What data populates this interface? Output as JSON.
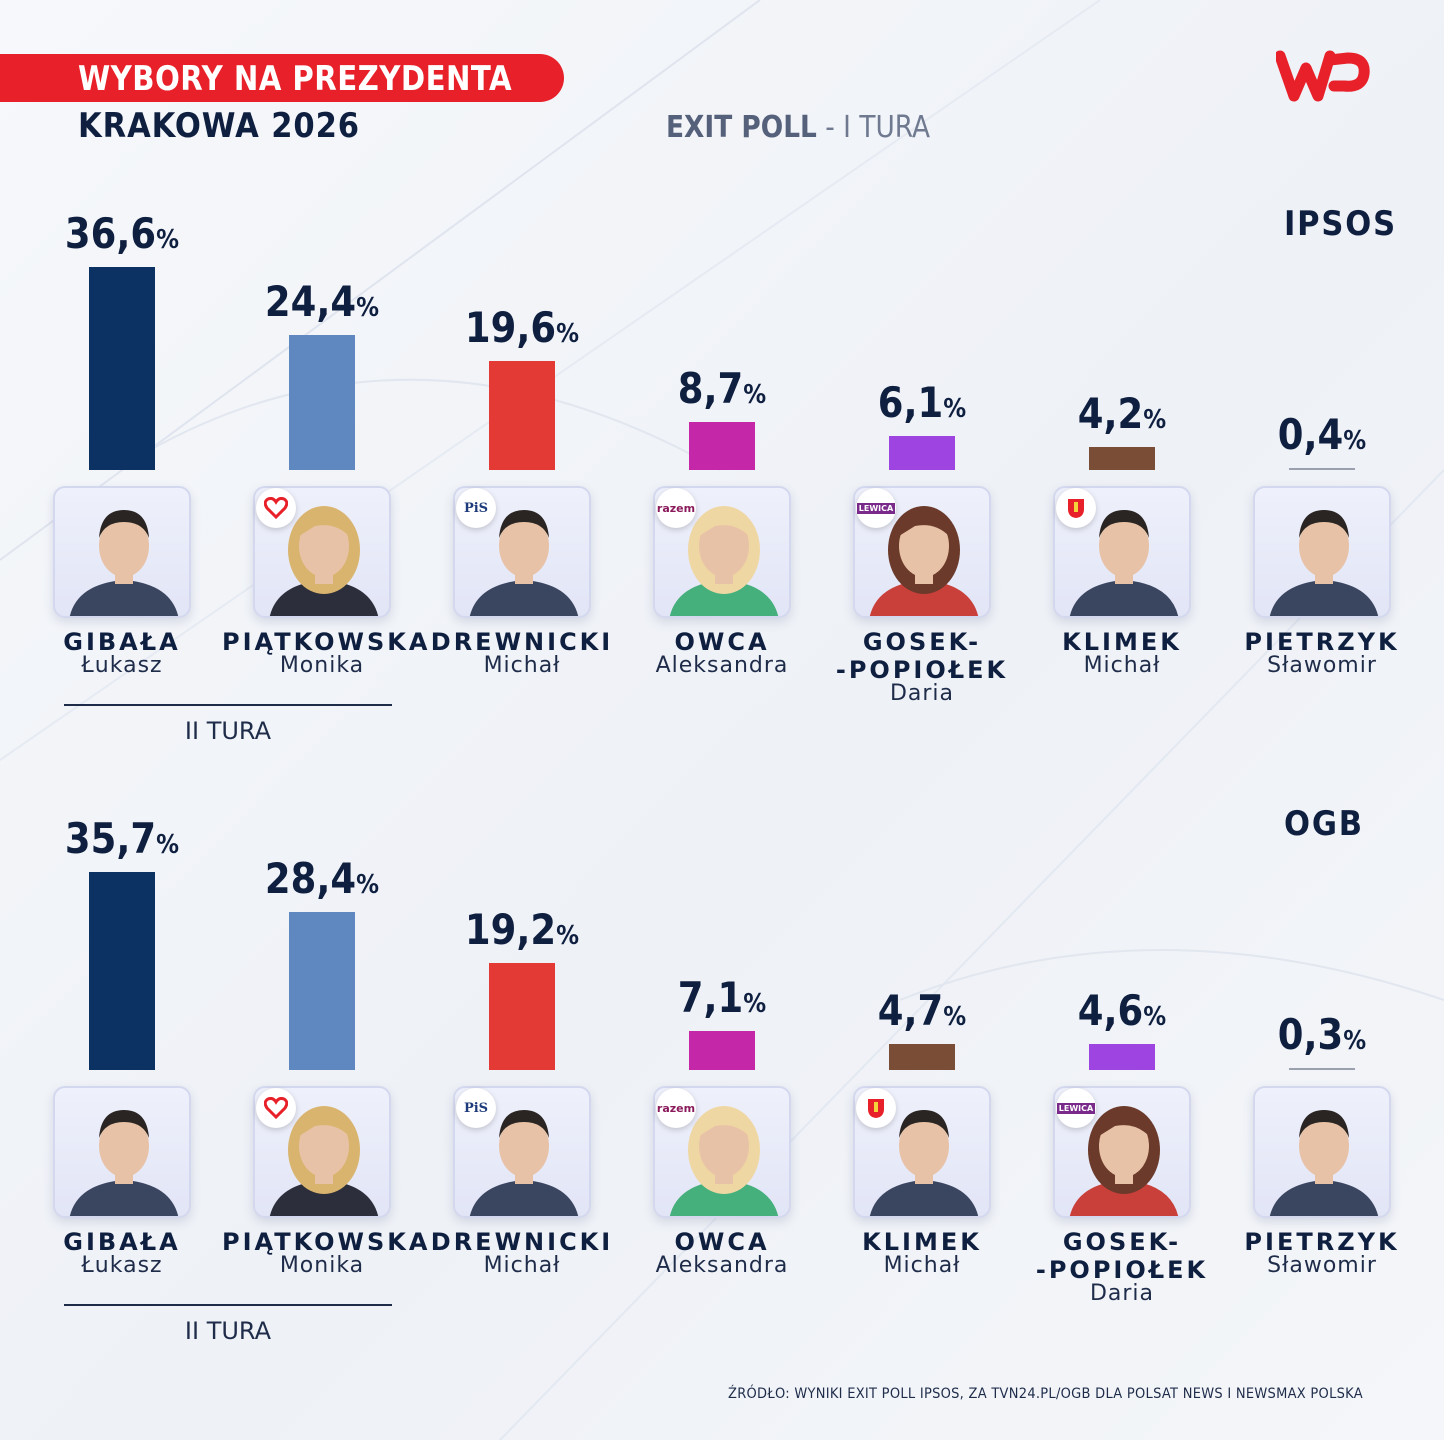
{
  "header": {
    "title_line1": "WYBORY NA PREZYDENTA",
    "title_line2": "KRAKOWA  2026",
    "subtitle_strong": "EXIT POLL",
    "subtitle_light": " - I TURA",
    "logo": "WP"
  },
  "chart_data": [
    {
      "type": "bar",
      "title": "IPSOS",
      "unit": "%",
      "categories": [
        "GIBAŁA Łukasz",
        "PIĄTKOWSKA Monika",
        "DREWNICKI Michał",
        "OWCA Aleksandra",
        "GOSEK-POPIOŁEK Daria",
        "KLIMEK Michał",
        "PIETRZYK Sławomir"
      ],
      "values": [
        36.6,
        24.4,
        19.6,
        8.7,
        6.1,
        4.2,
        0.4
      ],
      "candidates": [
        {
          "surname": "GIBAŁA",
          "firstname": "Łukasz",
          "value_label": "36,6",
          "value": 36.6,
          "color": "#0c3263",
          "badge": ""
        },
        {
          "surname": "PIĄTKOWSKA",
          "firstname": "Monika",
          "value_label": "24,4",
          "value": 24.4,
          "color": "#5e88bf",
          "badge": "heart"
        },
        {
          "surname": "DREWNICKI",
          "firstname": "Michał",
          "value_label": "19,6",
          "value": 19.6,
          "color": "#e43a36",
          "badge": "PiS"
        },
        {
          "surname": "OWCA",
          "firstname": "Aleksandra",
          "value_label": "8,7",
          "value": 8.7,
          "color": "#c428a9",
          "badge": "razem"
        },
        {
          "surname": "GOSEK-",
          "surname2": "-POPIOŁEK",
          "firstname": "Daria",
          "value_label": "6,1",
          "value": 6.1,
          "color": "#9e44e0",
          "badge": "LEWICA"
        },
        {
          "surname": "KLIMEK",
          "firstname": "Michał",
          "value_label": "4,2",
          "value": 4.2,
          "color": "#7a4d36",
          "badge": "crest"
        },
        {
          "surname": "PIETRZYK",
          "firstname": "Sławomir",
          "value_label": "0,4",
          "value": 0.4,
          "color": "#9aa0ae",
          "badge": ""
        }
      ],
      "runoff_label": "II TURA"
    },
    {
      "type": "bar",
      "title": "OGB",
      "unit": "%",
      "categories": [
        "GIBAŁA Łukasz",
        "PIĄTKOWSKA Monika",
        "DREWNICKI Michał",
        "OWCA Aleksandra",
        "KLIMEK Michał",
        "GOSEK-POPIOŁEK Daria",
        "PIETRZYK Sławomir"
      ],
      "values": [
        35.7,
        28.4,
        19.2,
        7.1,
        4.7,
        4.6,
        0.3
      ],
      "candidates": [
        {
          "surname": "GIBAŁA",
          "firstname": "Łukasz",
          "value_label": "35,7",
          "value": 35.7,
          "color": "#0c3263",
          "badge": ""
        },
        {
          "surname": "PIĄTKOWSKA",
          "firstname": "Monika",
          "value_label": "28,4",
          "value": 28.4,
          "color": "#5e88bf",
          "badge": "heart"
        },
        {
          "surname": "DREWNICKI",
          "firstname": "Michał",
          "value_label": "19,2",
          "value": 19.2,
          "color": "#e43a36",
          "badge": "PiS"
        },
        {
          "surname": "OWCA",
          "firstname": "Aleksandra",
          "value_label": "7,1",
          "value": 7.1,
          "color": "#c428a9",
          "badge": "razem"
        },
        {
          "surname": "KLIMEK",
          "firstname": "Michał",
          "value_label": "4,7",
          "value": 4.7,
          "color": "#7a4d36",
          "badge": "crest"
        },
        {
          "surname": "GOSEK-",
          "surname2": "-POPIOŁEK",
          "firstname": "Daria",
          "value_label": "4,6",
          "value": 4.6,
          "color": "#9e44e0",
          "badge": "LEWICA"
        },
        {
          "surname": "PIETRZYK",
          "firstname": "Sławomir",
          "value_label": "0,3",
          "value": 0.3,
          "color": "#9aa0ae",
          "badge": ""
        }
      ],
      "runoff_label": "II TURA"
    }
  ],
  "source_text": "ŹRÓDŁO: WYNIKI EXIT POLL IPSOS, ZA TVN24.PL/OGB DLA POLSAT NEWS I NEWSMAX POLSKA"
}
